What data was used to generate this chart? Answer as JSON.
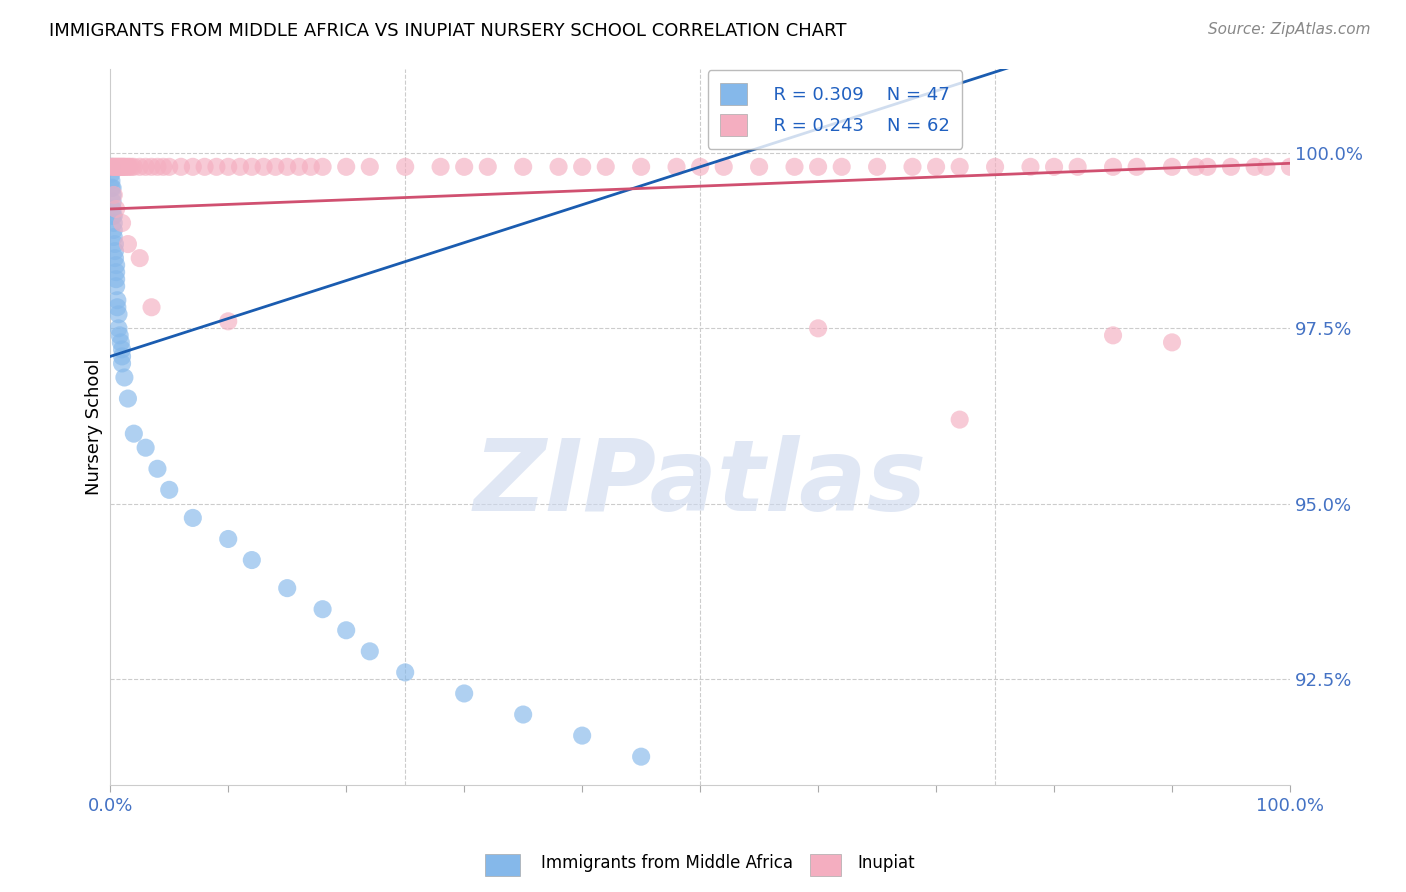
{
  "title": "IMMIGRANTS FROM MIDDLE AFRICA VS INUPIAT NURSERY SCHOOL CORRELATION CHART",
  "source": "Source: ZipAtlas.com",
  "ylabel": "Nursery School",
  "watermark": "ZIPatlas",
  "legend_blue_r": "R = 0.309",
  "legend_blue_n": "N = 47",
  "legend_pink_r": "R = 0.243",
  "legend_pink_n": "N = 62",
  "ytick_vals": [
    92.5,
    95.0,
    97.5,
    100.0
  ],
  "ytick_labels": [
    "92.5%",
    "95.0%",
    "97.5%",
    "100.0%"
  ],
  "xlim": [
    0,
    100
  ],
  "ylim": [
    91.0,
    101.2
  ],
  "blue_color": "#85b8ea",
  "pink_color": "#f4aec0",
  "blue_line_color": "#1a5cb0",
  "pink_line_color": "#d05070",
  "grid_color": "#cccccc",
  "bg_color": "#ffffff",
  "blue_x": [
    0.1,
    0.1,
    0.1,
    0.1,
    0.2,
    0.2,
    0.2,
    0.2,
    0.2,
    0.3,
    0.3,
    0.3,
    0.3,
    0.4,
    0.4,
    0.4,
    0.5,
    0.5,
    0.5,
    0.5,
    0.6,
    0.6,
    0.7,
    0.7,
    0.8,
    0.9,
    1.0,
    1.0,
    1.0,
    1.2,
    1.5,
    2.0,
    3.0,
    4.0,
    5.0,
    7.0,
    10.0,
    12.0,
    15.0,
    18.0,
    20.0,
    22.0,
    25.0,
    30.0,
    35.0,
    40.0,
    45.0
  ],
  "blue_y": [
    99.8,
    99.7,
    99.6,
    99.5,
    99.5,
    99.4,
    99.3,
    99.2,
    99.1,
    99.1,
    99.0,
    98.9,
    98.8,
    98.7,
    98.6,
    98.5,
    98.4,
    98.3,
    98.2,
    98.1,
    97.9,
    97.8,
    97.7,
    97.5,
    97.4,
    97.3,
    97.2,
    97.1,
    97.0,
    96.8,
    96.5,
    96.0,
    95.8,
    95.5,
    95.2,
    94.8,
    94.5,
    94.2,
    93.8,
    93.5,
    93.2,
    92.9,
    92.6,
    92.3,
    92.0,
    91.7,
    91.4
  ],
  "pink_x_top": [
    0.1,
    0.2,
    0.3,
    0.4,
    0.5,
    0.6,
    0.7,
    0.8,
    0.9,
    1.0,
    1.1,
    1.2,
    1.3,
    1.5,
    1.6,
    1.8,
    2.0,
    2.5,
    3.0,
    3.5,
    4.0,
    4.5,
    5.0,
    6.0,
    7.0,
    8.0,
    9.0,
    10.0,
    11.0,
    12.0,
    13.0,
    14.0,
    15.0,
    16.0,
    17.0,
    18.0,
    20.0,
    22.0,
    25.0,
    28.0,
    30.0,
    32.0,
    35.0,
    38.0,
    40.0,
    42.0,
    45.0,
    48.0,
    50.0,
    52.0,
    55.0,
    58.0,
    60.0,
    62.0,
    65.0,
    68.0,
    70.0,
    72.0,
    75.0,
    78.0,
    80.0,
    82.0,
    85.0,
    87.0,
    90.0,
    92.0,
    93.0,
    95.0,
    97.0,
    98.0,
    100.0
  ],
  "pink_y_top": [
    99.8,
    99.8,
    99.8,
    99.8,
    99.8,
    99.8,
    99.8,
    99.8,
    99.8,
    99.8,
    99.8,
    99.8,
    99.8,
    99.8,
    99.8,
    99.8,
    99.8,
    99.8,
    99.8,
    99.8,
    99.8,
    99.8,
    99.8,
    99.8,
    99.8,
    99.8,
    99.8,
    99.8,
    99.8,
    99.8,
    99.8,
    99.8,
    99.8,
    99.8,
    99.8,
    99.8,
    99.8,
    99.8,
    99.8,
    99.8,
    99.8,
    99.8,
    99.8,
    99.8,
    99.8,
    99.8,
    99.8,
    99.8,
    99.8,
    99.8,
    99.8,
    99.8,
    99.8,
    99.8,
    99.8,
    99.8,
    99.8,
    99.8,
    99.8,
    99.8,
    99.8,
    99.8,
    99.8,
    99.8,
    99.8,
    99.8,
    99.8,
    99.8,
    99.8,
    99.8,
    99.8
  ],
  "pink_x_scatter": [
    0.3,
    0.5,
    1.0,
    1.5,
    2.5,
    3.5,
    10.0,
    60.0,
    72.0,
    85.0,
    90.0
  ],
  "pink_y_scatter": [
    99.4,
    99.2,
    99.0,
    98.7,
    98.5,
    97.8,
    97.6,
    97.5,
    96.2,
    97.4,
    97.3
  ]
}
